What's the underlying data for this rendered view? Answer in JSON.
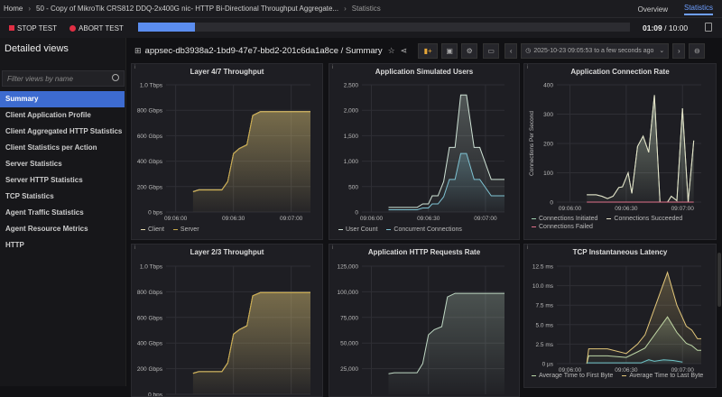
{
  "breadcrumb": {
    "home": "Home",
    "test": "50 - Copy of MikroTik CRS812 DDQ-2x400G nic- HTTP Bi-Directional Throughput Aggregate...",
    "current": "Statistics"
  },
  "top_tabs": {
    "overview": "Overview",
    "statistics": "Statistics"
  },
  "toolbar": {
    "stop": "STOP TEST",
    "abort": "ABORT TEST",
    "progress_fraction": 0.115,
    "elapsed": "01:09",
    "total": "/ 10:00"
  },
  "sidebar": {
    "title": "Detailed views",
    "filter_placeholder": "Filter views by name",
    "items": [
      {
        "label": "Summary",
        "selected": true
      },
      {
        "label": "Client Application Profile"
      },
      {
        "label": "Client Aggregated HTTP Statistics"
      },
      {
        "label": "Client Statistics per Action"
      },
      {
        "label": "Server Statistics"
      },
      {
        "label": "Server HTTP Statistics"
      },
      {
        "label": "TCP Statistics"
      },
      {
        "label": "Agent Traffic Statistics"
      },
      {
        "label": "Agent Resource Metrics"
      },
      {
        "label": "HTTP"
      }
    ]
  },
  "dashboard": {
    "title": "appsec-db3938a2-1bd9-47e7-bbd2-201c6da1a8ce / Summary",
    "time_range": "2025-10-23 09:05:53 to a few seconds ago"
  },
  "colors": {
    "accent": "#5b8def",
    "selected": "#3d6bd0",
    "stop": "#e02f44"
  },
  "chart_data": [
    {
      "type": "area",
      "title": "Layer 4/7 Throughput",
      "ylim": [
        0,
        1000
      ],
      "yticks": [
        0,
        200,
        400,
        600,
        800,
        1000
      ],
      "yticklabels": [
        "0 bps",
        "200 Gbps",
        "400 Gbps",
        "600 Gbps",
        "800 Gbps",
        "1.0 Tbps"
      ],
      "xticks": [
        "09:06:00",
        "09:06:30",
        "09:07:00"
      ],
      "xlim": [
        "09:05:55",
        "09:07:10"
      ],
      "series": [
        {
          "name": "Client",
          "color": "#e9ddb0",
          "x": [
            "09:06:09",
            "09:06:12",
            "09:06:24",
            "09:06:27",
            "09:06:30",
            "09:06:33",
            "09:06:37",
            "09:06:40",
            "09:06:44",
            "09:07:10"
          ],
          "y": [
            160,
            175,
            175,
            240,
            460,
            500,
            530,
            760,
            790,
            790
          ]
        },
        {
          "name": "Server",
          "color": "#c9a94a",
          "x": [
            "09:06:09",
            "09:06:12",
            "09:06:24",
            "09:06:27",
            "09:06:30",
            "09:06:33",
            "09:06:37",
            "09:06:40",
            "09:06:44",
            "09:07:10"
          ],
          "y": [
            158,
            173,
            173,
            238,
            458,
            498,
            528,
            758,
            788,
            788
          ]
        }
      ]
    },
    {
      "type": "area",
      "title": "Application Simulated Users",
      "ylim": [
        0,
        2500
      ],
      "yticks": [
        0,
        500,
        1000,
        1500,
        2000,
        2500
      ],
      "yticklabels": [
        "0",
        "500",
        "1,000",
        "1,500",
        "2,000",
        "2,500"
      ],
      "xticks": [
        "09:06:00",
        "09:06:30",
        "09:07:00"
      ],
      "xlim": [
        "09:05:55",
        "09:07:10"
      ],
      "series": [
        {
          "name": "User Count",
          "color": "#cfe3d6",
          "x": [
            "09:06:09",
            "09:06:24",
            "09:06:27",
            "09:06:30",
            "09:06:32",
            "09:06:35",
            "09:06:38",
            "09:06:41",
            "09:06:44",
            "09:06:47",
            "09:06:50",
            "09:06:54",
            "09:06:57",
            "09:07:03",
            "09:07:10"
          ],
          "y": [
            90,
            90,
            160,
            160,
            320,
            320,
            600,
            1270,
            1270,
            2300,
            2300,
            1270,
            1270,
            640,
            640
          ]
        },
        {
          "name": "Concurrent Connections",
          "color": "#7fc3d3",
          "x": [
            "09:06:09",
            "09:06:24",
            "09:06:27",
            "09:06:30",
            "09:06:32",
            "09:06:35",
            "09:06:38",
            "09:06:41",
            "09:06:44",
            "09:06:47",
            "09:06:50",
            "09:06:54",
            "09:06:57",
            "09:07:03",
            "09:07:10"
          ],
          "y": [
            45,
            45,
            80,
            80,
            160,
            160,
            300,
            640,
            640,
            1150,
            1150,
            640,
            640,
            320,
            320
          ]
        }
      ]
    },
    {
      "type": "area",
      "title": "Application Connection Rate",
      "ylabel": "Connections Per Second",
      "ylim": [
        0,
        400
      ],
      "yticks": [
        0,
        100,
        200,
        300,
        400
      ],
      "yticklabels": [
        "0",
        "100",
        "200",
        "300",
        "400"
      ],
      "xticks": [
        "09:06:00",
        "09:06:30",
        "09:07:00"
      ],
      "xlim": [
        "09:05:53",
        "09:07:10"
      ],
      "series": [
        {
          "name": "Connections Initiated",
          "color": "#9fcfb0",
          "x": [
            "09:06:09",
            "09:06:14",
            "09:06:17",
            "09:06:20",
            "09:06:23",
            "09:06:26",
            "09:06:28",
            "09:06:31",
            "09:06:33",
            "09:06:36",
            "09:06:39",
            "09:06:42",
            "09:06:45",
            "09:06:48",
            "09:06:52",
            "09:06:54",
            "09:06:57",
            "09:07:00",
            "09:07:03",
            "09:07:06"
          ],
          "y": [
            25,
            25,
            20,
            12,
            20,
            50,
            52,
            100,
            30,
            190,
            225,
            170,
            365,
            0,
            0,
            20,
            5,
            320,
            0,
            210
          ]
        },
        {
          "name": "Connections Succeeded",
          "color": "#e6e2c8",
          "x": [
            "09:06:09",
            "09:06:14",
            "09:06:17",
            "09:06:20",
            "09:06:23",
            "09:06:26",
            "09:06:28",
            "09:06:31",
            "09:06:33",
            "09:06:36",
            "09:06:39",
            "09:06:42",
            "09:06:45",
            "09:06:48",
            "09:06:52",
            "09:06:54",
            "09:06:57",
            "09:07:00",
            "09:07:03",
            "09:07:06"
          ],
          "y": [
            25,
            25,
            20,
            12,
            20,
            50,
            52,
            100,
            30,
            190,
            225,
            170,
            365,
            0,
            0,
            20,
            5,
            320,
            0,
            210
          ]
        },
        {
          "name": "Connections Failed",
          "color": "#e0708a",
          "x": [
            "09:06:09",
            "09:07:06"
          ],
          "y": [
            0,
            0
          ]
        }
      ]
    },
    {
      "type": "area",
      "title": "Layer 2/3 Throughput",
      "ylim": [
        0,
        1000
      ],
      "yticks": [
        0,
        200,
        400,
        600,
        800,
        1000
      ],
      "yticklabels": [
        "0 bps",
        "200 Gbps",
        "400 Gbps",
        "600 Gbps",
        "800 Gbps",
        "1.0 Tbps"
      ],
      "xlim": [
        "09:05:55",
        "09:07:10"
      ],
      "series": [
        {
          "color": "#e9ddb0",
          "x": [
            "09:06:09",
            "09:06:12",
            "09:06:24",
            "09:06:27",
            "09:06:30",
            "09:06:33",
            "09:06:37",
            "09:06:40",
            "09:06:44",
            "09:07:10"
          ],
          "y": [
            165,
            178,
            178,
            245,
            470,
            505,
            535,
            770,
            795,
            795
          ]
        },
        {
          "color": "#c9a94a",
          "x": [
            "09:06:09",
            "09:06:12",
            "09:06:24",
            "09:06:27",
            "09:06:30",
            "09:06:33",
            "09:06:37",
            "09:06:40",
            "09:06:44",
            "09:07:10"
          ],
          "y": [
            163,
            176,
            176,
            243,
            468,
            503,
            533,
            768,
            793,
            793
          ]
        }
      ]
    },
    {
      "type": "area",
      "title": "Application HTTP Requests Rate",
      "ylim": [
        0,
        125000
      ],
      "yticks": [
        25000,
        50000,
        75000,
        100000,
        125000
      ],
      "yticklabels": [
        "25,000",
        "50,000",
        "75,000",
        "100,000",
        "125,000"
      ],
      "xlim": [
        "09:05:55",
        "09:07:10"
      ],
      "series": [
        {
          "color": "#bfd8c4",
          "x": [
            "09:06:09",
            "09:06:12",
            "09:06:24",
            "09:06:27",
            "09:06:30",
            "09:06:33",
            "09:06:37",
            "09:06:40",
            "09:06:44",
            "09:07:10"
          ],
          "y": [
            20000,
            21000,
            21000,
            30000,
            58000,
            63000,
            66000,
            95000,
            98500,
            98500
          ]
        }
      ]
    },
    {
      "type": "area",
      "title": "TCP Instantaneous Latency",
      "ylim": [
        0,
        12.5
      ],
      "yticks": [
        0,
        2.5,
        5,
        7.5,
        10,
        12.5
      ],
      "yticklabels": [
        "0 µs",
        "2.5 ms",
        "5.0 ms",
        "7.5 ms",
        "10.0 ms",
        "12.5 ms"
      ],
      "xticks": [
        "09:06:00",
        "09:06:30",
        "09:07:00"
      ],
      "xlim": [
        "09:05:53",
        "09:07:10"
      ],
      "series": [
        {
          "name": "Average Time to First Byte",
          "color": "#b9d6a8",
          "x": [
            "09:06:09",
            "09:06:10",
            "09:06:20",
            "09:06:30",
            "09:06:36",
            "09:06:40",
            "09:06:52",
            "09:06:57",
            "09:07:02",
            "09:07:05",
            "09:07:08",
            "09:07:10"
          ],
          "y": [
            0,
            1.0,
            1.0,
            0.8,
            1.5,
            2.0,
            6.0,
            4.0,
            2.6,
            2.3,
            1.7,
            1.7
          ]
        },
        {
          "name": "Average Time to Last Byte",
          "color": "#e3c77a",
          "x": [
            "09:06:09",
            "09:06:10",
            "09:06:20",
            "09:06:30",
            "09:06:36",
            "09:06:40",
            "09:06:52",
            "09:06:57",
            "09:07:02",
            "09:07:05",
            "09:07:08",
            "09:07:10"
          ],
          "y": [
            0,
            1.9,
            1.9,
            1.3,
            2.5,
            3.7,
            11.7,
            7.5,
            4.8,
            4.3,
            3.2,
            3.2
          ]
        },
        {
          "color": "#6fc4c8",
          "x": [
            "09:06:09",
            "09:06:38",
            "09:06:42",
            "09:06:45",
            "09:06:50",
            "09:06:55",
            "09:07:00"
          ],
          "y": [
            0.1,
            0.1,
            0.5,
            0.3,
            0.5,
            0.4,
            0.2
          ]
        }
      ]
    }
  ]
}
